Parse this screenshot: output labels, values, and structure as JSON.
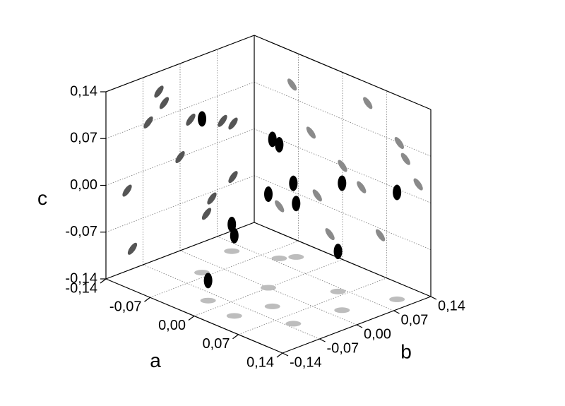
{
  "chart_data": {
    "type": "scatter3d",
    "axis_labels": {
      "a": "a",
      "b": "b",
      "c": "c"
    },
    "a": [
      0.1,
      -0.05,
      0.03,
      0.06,
      -0.08,
      0.0,
      0.09,
      -0.04,
      0.12,
      -0.1,
      0.04,
      -0.02
    ],
    "b": [
      0.02,
      0.08,
      -0.1,
      0.06,
      -0.03,
      0.0,
      -0.06,
      0.1,
      0.1,
      0.05,
      -0.04,
      -0.09
    ],
    "c": [
      0.05,
      0.03,
      -0.02,
      -0.08,
      0.09,
      0.0,
      0.07,
      -0.06,
      0.02,
      -0.1,
      0.11,
      -0.11
    ],
    "colors": {
      "points": "#000000",
      "wall_a": "#555555",
      "wall_b": "#8a8a8a",
      "floor": "#bdbdbd"
    },
    "alim": [
      -0.14,
      0.14
    ],
    "blim": [
      -0.14,
      0.14
    ],
    "clim": [
      -0.14,
      0.14
    ],
    "aticks": [
      {
        "value": -0.14,
        "label": "-0,14"
      },
      {
        "value": -0.07,
        "label": "-0,07"
      },
      {
        "value": 0,
        "label": "0,00"
      },
      {
        "value": 0.07,
        "label": "0,07"
      },
      {
        "value": 0.14,
        "label": "0,14"
      }
    ],
    "bticks": [
      {
        "value": -0.14,
        "label": "-0,14"
      },
      {
        "value": -0.07,
        "label": "-0,07"
      },
      {
        "value": 0,
        "label": "0,00"
      },
      {
        "value": 0.07,
        "label": "0,07"
      },
      {
        "value": 0.14,
        "label": "0,14"
      }
    ],
    "cticks": [
      {
        "value": -0.14,
        "label": "-0,14"
      },
      {
        "value": -0.07,
        "label": "-0,07"
      },
      {
        "value": 0,
        "label": "0,00"
      },
      {
        "value": 0.07,
        "label": "0,07"
      },
      {
        "value": 0.14,
        "label": "0,14"
      }
    ],
    "grid": true
  }
}
